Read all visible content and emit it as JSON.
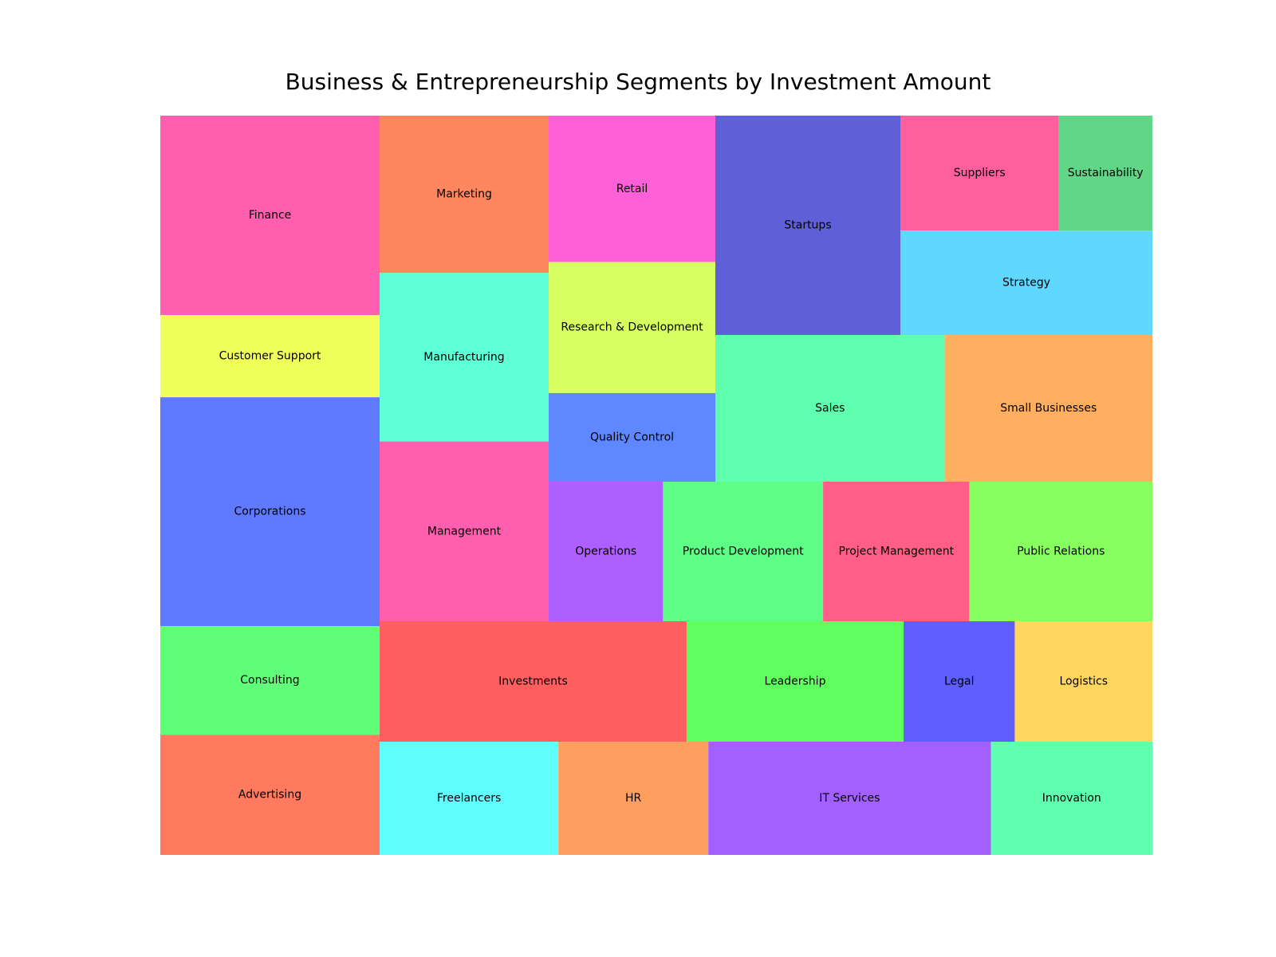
{
  "chart_data": {
    "type": "treemap",
    "title": "Business & Entrepreneurship Segments by Investment Amount",
    "columns": [
      {
        "tiles": [
          {
            "label": "Finance",
            "value": 6.8,
            "color": "#ff5fae"
          },
          {
            "label": "Customer Support",
            "value": 2.8,
            "color": "#f1ff5b"
          },
          {
            "label": "Corporations",
            "value": 7.8,
            "color": "#5f7aff"
          },
          {
            "label": "Consulting",
            "value": 3.7,
            "color": "#5fff78"
          },
          {
            "label": "Advertising",
            "value": 4.1,
            "color": "#ff7a5f"
          }
        ]
      },
      {
        "tiles": [
          {
            "label": "Marketing",
            "value": 4.2,
            "color": "#ff875f"
          },
          {
            "label": "Manufacturing",
            "value": 4.5,
            "color": "#5fffd7"
          },
          {
            "label": "Management",
            "value": 4.8,
            "color": "#ff5fae"
          }
        ]
      },
      {
        "tiles": [
          {
            "label": "Retail",
            "value": 3.8,
            "color": "#ff5fd7"
          },
          {
            "label": "Research & Development",
            "value": 3.4,
            "color": "#d7ff5f"
          },
          {
            "label": "Quality Control",
            "value": 2.3,
            "color": "#5f87ff"
          }
        ]
      },
      {
        "tiles": [
          {
            "label": "Startups",
            "value": 6.3,
            "color": "#5f5fd7"
          }
        ]
      },
      {
        "tiles": [
          {
            "label": "Suppliers",
            "value": 2.7,
            "color": "#ff5f9d"
          },
          {
            "label": "Sustainability",
            "value": 1.6,
            "color": "#5fd787"
          },
          {
            "label": "Strategy",
            "value": 3.9,
            "color": "#5fd7ff"
          }
        ]
      },
      {
        "tiles": [
          {
            "label": "Sales",
            "value": 5.3,
            "color": "#5fffaf"
          },
          {
            "label": "Small Businesses",
            "value": 4.8,
            "color": "#ffaf5f"
          }
        ]
      },
      {
        "tiles": [
          {
            "label": "Operations",
            "value": 2.5,
            "color": "#af5fff"
          },
          {
            "label": "Product Development",
            "value": 3.5,
            "color": "#5fff87"
          },
          {
            "label": "Project Management",
            "value": 3.2,
            "color": "#ff5f87"
          },
          {
            "label": "Public Relations",
            "value": 4.0,
            "color": "#87ff5f"
          }
        ]
      },
      {
        "tiles": [
          {
            "label": "Investments",
            "value": 5.8,
            "color": "#ff5f5f"
          },
          {
            "label": "Leadership",
            "value": 4.1,
            "color": "#5fff5f"
          },
          {
            "label": "Legal",
            "value": 2.1,
            "color": "#5f5fff"
          },
          {
            "label": "Logistics",
            "value": 2.6,
            "color": "#ffd75f"
          }
        ]
      },
      {
        "tiles": [
          {
            "label": "Freelancers",
            "value": 3.1,
            "color": "#5fffff"
          },
          {
            "label": "HR",
            "value": 2.6,
            "color": "#ff9f5f"
          },
          {
            "label": "IT Services",
            "value": 4.9,
            "color": "#a35fff"
          },
          {
            "label": "Innovation",
            "value": 2.8,
            "color": "#5fffaf"
          }
        ]
      }
    ]
  }
}
